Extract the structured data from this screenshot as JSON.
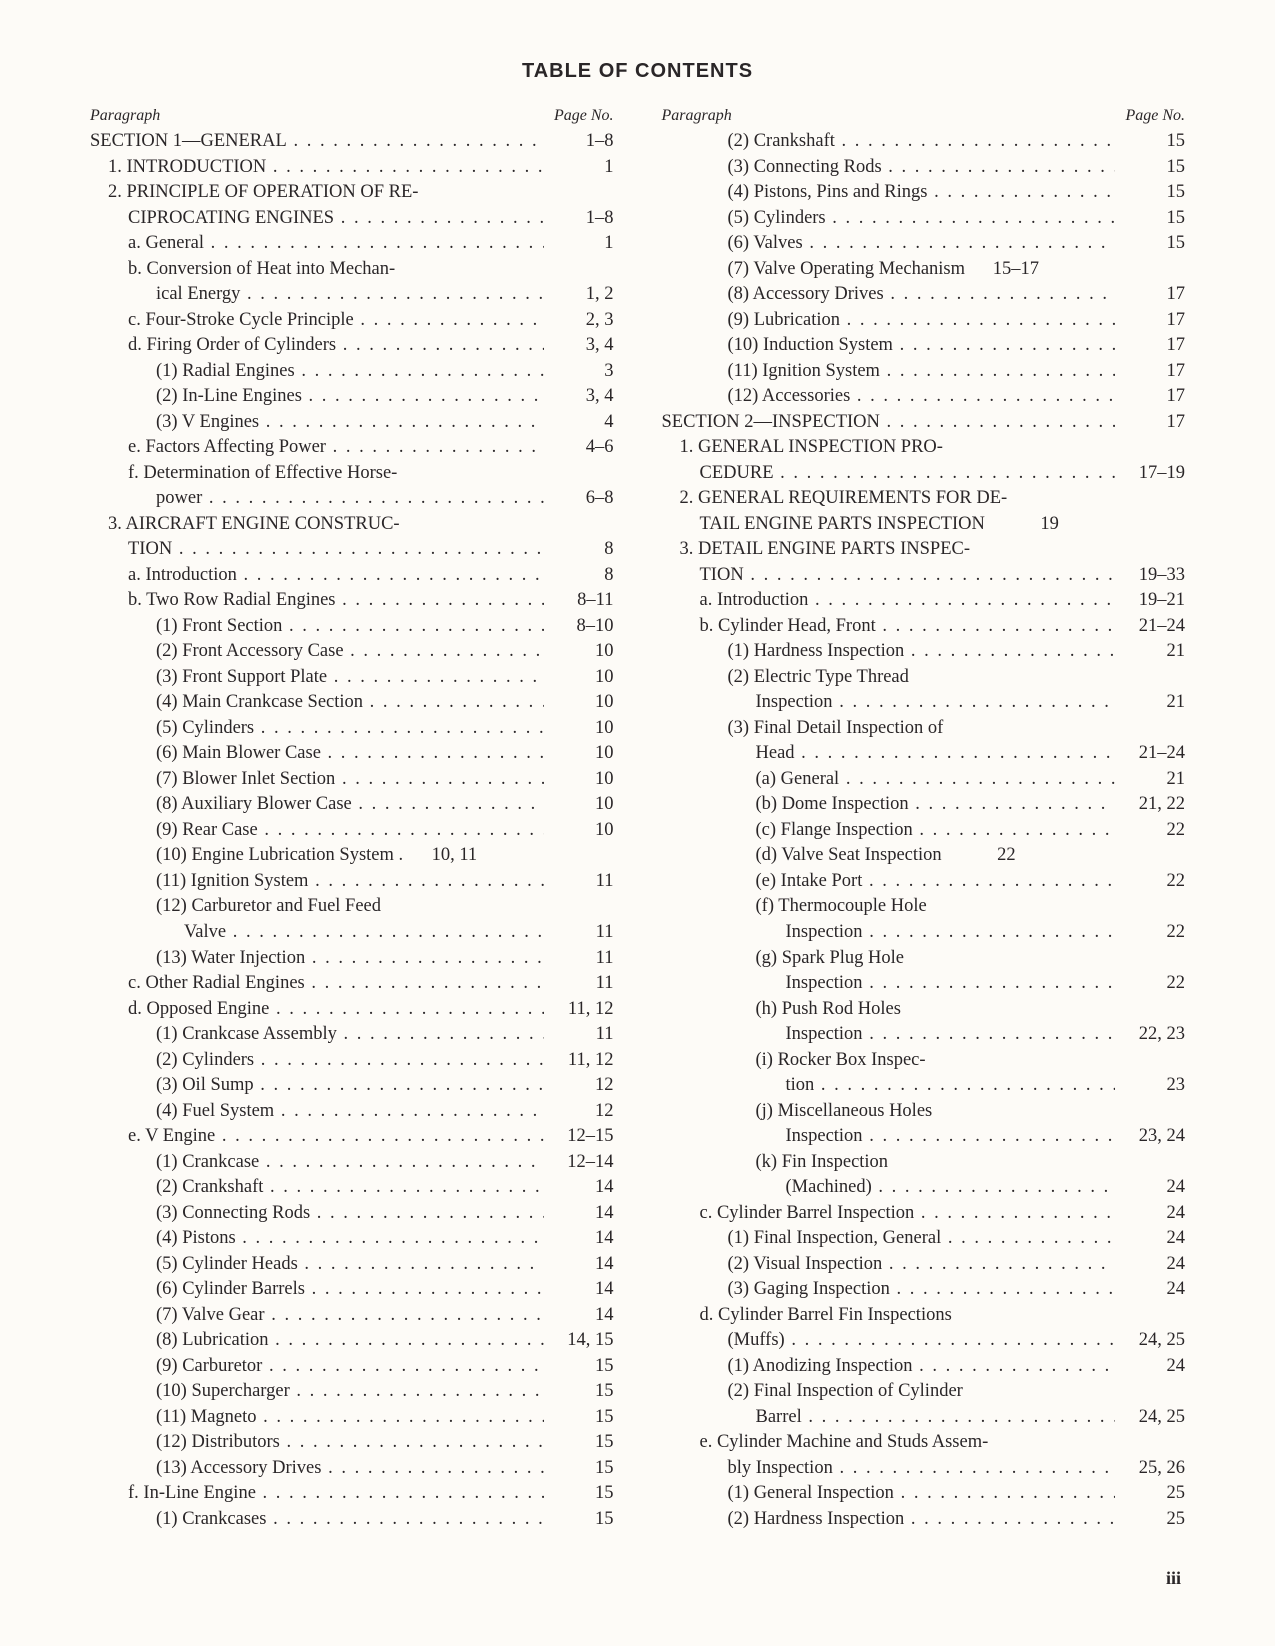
{
  "title": "TABLE OF CONTENTS",
  "colheads": {
    "left": "Paragraph",
    "right": "Page No."
  },
  "pageNumber": "iii",
  "left": [
    {
      "ind": 0,
      "t": "SECTION 1—GENERAL",
      "p": "1–8"
    },
    {
      "ind": 1,
      "t": "1. INTRODUCTION",
      "p": "1"
    },
    {
      "ind": 1,
      "t": "2. PRINCIPLE OF OPERATION OF RE-",
      "nodots": true
    },
    {
      "ind": 2,
      "t": "CIPROCATING ENGINES",
      "p": "1–8"
    },
    {
      "ind": 2,
      "t": "a. General",
      "p": "1"
    },
    {
      "ind": 2,
      "t": "b. Conversion of Heat into Mechan-",
      "nodots": true
    },
    {
      "ind": 3,
      "t": "ical Energy",
      "p": "1, 2"
    },
    {
      "ind": 2,
      "t": "c. Four-Stroke Cycle Principle",
      "p": "2, 3"
    },
    {
      "ind": 2,
      "t": "d. Firing Order of Cylinders",
      "p": "3, 4"
    },
    {
      "ind": 3,
      "t": "(1) Radial Engines",
      "p": "3"
    },
    {
      "ind": 3,
      "t": "(2) In-Line Engines",
      "p": "3, 4"
    },
    {
      "ind": 3,
      "t": "(3) V Engines",
      "p": "4"
    },
    {
      "ind": 2,
      "t": "e. Factors Affecting Power",
      "p": "4–6"
    },
    {
      "ind": 2,
      "t": "f. Determination of Effective Horse-",
      "nodots": true
    },
    {
      "ind": 3,
      "t": "power",
      "p": "6–8"
    },
    {
      "ind": 1,
      "t": "3. AIRCRAFT ENGINE CONSTRUC-",
      "nodots": true
    },
    {
      "ind": 2,
      "t": "TION",
      "p": "8"
    },
    {
      "ind": 2,
      "t": "a. Introduction",
      "p": "8"
    },
    {
      "ind": 2,
      "t": "b. Two Row Radial Engines",
      "p": "8–11"
    },
    {
      "ind": 3,
      "t": "(1) Front Section",
      "p": "8–10"
    },
    {
      "ind": 3,
      "t": "(2) Front Accessory Case",
      "p": "10"
    },
    {
      "ind": 3,
      "t": "(3) Front Support Plate",
      "p": "10"
    },
    {
      "ind": 3,
      "t": "(4) Main Crankcase Section",
      "p": "10"
    },
    {
      "ind": 3,
      "t": "(5) Cylinders",
      "p": "10"
    },
    {
      "ind": 3,
      "t": "(6) Main Blower Case",
      "p": "10"
    },
    {
      "ind": 3,
      "t": "(7) Blower Inlet Section",
      "p": "10"
    },
    {
      "ind": 3,
      "t": "(8) Auxiliary Blower Case",
      "p": "10"
    },
    {
      "ind": 3,
      "t": "(9) Rear Case",
      "p": "10"
    },
    {
      "ind": 3,
      "t": "(10) Engine Lubrication System .",
      "p": "10, 11",
      "nodots": true
    },
    {
      "ind": 3,
      "t": "(11) Ignition System",
      "p": "11"
    },
    {
      "ind": 3,
      "t": "(12) Carburetor and Fuel Feed",
      "nodots": true
    },
    {
      "ind": 4,
      "t": "Valve",
      "p": "11"
    },
    {
      "ind": 3,
      "t": "(13) Water Injection",
      "p": "11"
    },
    {
      "ind": 2,
      "t": "c. Other Radial Engines",
      "p": "11"
    },
    {
      "ind": 2,
      "t": "d. Opposed Engine",
      "p": "11, 12"
    },
    {
      "ind": 3,
      "t": "(1) Crankcase Assembly",
      "p": "11"
    },
    {
      "ind": 3,
      "t": "(2) Cylinders",
      "p": "11, 12"
    },
    {
      "ind": 3,
      "t": "(3) Oil Sump",
      "p": "12"
    },
    {
      "ind": 3,
      "t": "(4) Fuel System",
      "p": "12"
    },
    {
      "ind": 2,
      "t": "e. V Engine",
      "p": "12–15"
    },
    {
      "ind": 3,
      "t": "(1) Crankcase",
      "p": "12–14"
    },
    {
      "ind": 3,
      "t": "(2) Crankshaft",
      "p": "14"
    },
    {
      "ind": 3,
      "t": "(3) Connecting Rods",
      "p": "14"
    },
    {
      "ind": 3,
      "t": "(4) Pistons",
      "p": "14"
    },
    {
      "ind": 3,
      "t": "(5) Cylinder Heads",
      "p": "14"
    },
    {
      "ind": 3,
      "t": "(6) Cylinder Barrels",
      "p": "14"
    },
    {
      "ind": 3,
      "t": "(7) Valve Gear",
      "p": "14"
    },
    {
      "ind": 3,
      "t": "(8) Lubrication",
      "p": "14, 15"
    },
    {
      "ind": 3,
      "t": "(9) Carburetor",
      "p": "15"
    },
    {
      "ind": 3,
      "t": "(10) Supercharger",
      "p": "15"
    },
    {
      "ind": 3,
      "t": "(11) Magneto",
      "p": "15"
    },
    {
      "ind": 3,
      "t": "(12) Distributors",
      "p": "15"
    },
    {
      "ind": 3,
      "t": "(13) Accessory Drives",
      "p": "15"
    },
    {
      "ind": 2,
      "t": "f. In-Line Engine",
      "p": "15"
    },
    {
      "ind": 3,
      "t": "(1) Crankcases",
      "p": "15"
    }
  ],
  "right": [
    {
      "ind": 3,
      "t": "(2) Crankshaft",
      "p": "15"
    },
    {
      "ind": 3,
      "t": "(3) Connecting Rods",
      "p": "15"
    },
    {
      "ind": 3,
      "t": "(4) Pistons, Pins and Rings",
      "p": "15"
    },
    {
      "ind": 3,
      "t": "(5) Cylinders",
      "p": "15"
    },
    {
      "ind": 3,
      "t": "(6) Valves",
      "p": "15"
    },
    {
      "ind": 3,
      "t": "(7) Valve Operating Mechanism",
      "p": "15–17",
      "nodots": true
    },
    {
      "ind": 3,
      "t": "(8) Accessory Drives",
      "p": "17"
    },
    {
      "ind": 3,
      "t": "(9) Lubrication",
      "p": "17"
    },
    {
      "ind": 3,
      "t": "(10) Induction System",
      "p": "17"
    },
    {
      "ind": 3,
      "t": "(11) Ignition System",
      "p": "17"
    },
    {
      "ind": 3,
      "t": "(12) Accessories",
      "p": "17"
    },
    {
      "ind": 0,
      "t": "SECTION 2—INSPECTION",
      "p": "17"
    },
    {
      "ind": 1,
      "t": "1. GENERAL INSPECTION PRO-",
      "nodots": true
    },
    {
      "ind": 2,
      "t": "CEDURE",
      "p": "17–19"
    },
    {
      "ind": 1,
      "t": "2. GENERAL REQUIREMENTS FOR DE-",
      "nodots": true
    },
    {
      "ind": 2,
      "t": "TAIL ENGINE PARTS INSPECTION",
      "p": "19",
      "nodots": true
    },
    {
      "ind": 1,
      "t": "3. DETAIL ENGINE PARTS INSPEC-",
      "nodots": true
    },
    {
      "ind": 2,
      "t": "TION",
      "p": "19–33"
    },
    {
      "ind": 2,
      "t": "a. Introduction",
      "p": "19–21"
    },
    {
      "ind": 2,
      "t": "b. Cylinder Head, Front",
      "p": "21–24"
    },
    {
      "ind": 3,
      "t": "(1) Hardness Inspection",
      "p": "21"
    },
    {
      "ind": 3,
      "t": "(2) Electric Type Thread",
      "nodots": true
    },
    {
      "ind": 4,
      "t": "Inspection",
      "p": "21"
    },
    {
      "ind": 3,
      "t": "(3) Final Detail Inspection of",
      "nodots": true
    },
    {
      "ind": 4,
      "t": "Head",
      "p": "21–24"
    },
    {
      "ind": 4,
      "t": "(a) General",
      "p": "21"
    },
    {
      "ind": 4,
      "t": "(b) Dome Inspection",
      "p": "21, 22"
    },
    {
      "ind": 4,
      "t": "(c) Flange Inspection",
      "p": "22"
    },
    {
      "ind": 4,
      "t": "(d) Valve Seat Inspection",
      "p": "22",
      "nodots": true
    },
    {
      "ind": 4,
      "t": "(e) Intake Port",
      "p": "22"
    },
    {
      "ind": 4,
      "t": "(f) Thermocouple Hole",
      "nodots": true
    },
    {
      "ind": 5,
      "t": "Inspection",
      "p": "22"
    },
    {
      "ind": 4,
      "t": "(g) Spark Plug Hole",
      "nodots": true
    },
    {
      "ind": 5,
      "t": "Inspection",
      "p": "22"
    },
    {
      "ind": 4,
      "t": "(h) Push Rod Holes",
      "nodots": true
    },
    {
      "ind": 5,
      "t": "Inspection",
      "p": "22, 23"
    },
    {
      "ind": 4,
      "t": "(i) Rocker Box Inspec-",
      "nodots": true
    },
    {
      "ind": 5,
      "t": "tion",
      "p": "23"
    },
    {
      "ind": 4,
      "t": "(j) Miscellaneous Holes",
      "nodots": true
    },
    {
      "ind": 5,
      "t": "Inspection",
      "p": "23, 24"
    },
    {
      "ind": 4,
      "t": "(k) Fin Inspection",
      "nodots": true
    },
    {
      "ind": 5,
      "t": "(Machined)",
      "p": "24"
    },
    {
      "ind": 2,
      "t": "c. Cylinder Barrel Inspection",
      "p": "24"
    },
    {
      "ind": 3,
      "t": "(1) Final Inspection, General",
      "p": "24"
    },
    {
      "ind": 3,
      "t": "(2) Visual Inspection",
      "p": "24"
    },
    {
      "ind": 3,
      "t": "(3) Gaging Inspection",
      "p": "24"
    },
    {
      "ind": 2,
      "t": "d. Cylinder Barrel Fin Inspections",
      "nodots": true
    },
    {
      "ind": 3,
      "t": "(Muffs)",
      "p": "24, 25"
    },
    {
      "ind": 3,
      "t": "(1) Anodizing Inspection",
      "p": "24"
    },
    {
      "ind": 3,
      "t": "(2) Final Inspection of Cylinder",
      "nodots": true
    },
    {
      "ind": 4,
      "t": "Barrel",
      "p": "24, 25"
    },
    {
      "ind": 2,
      "t": "e. Cylinder Machine and Studs Assem-",
      "nodots": true
    },
    {
      "ind": 3,
      "t": "bly Inspection",
      "p": "25, 26"
    },
    {
      "ind": 3,
      "t": "(1) General Inspection",
      "p": "25"
    },
    {
      "ind": 3,
      "t": "(2) Hardness Inspection",
      "p": "25"
    }
  ]
}
